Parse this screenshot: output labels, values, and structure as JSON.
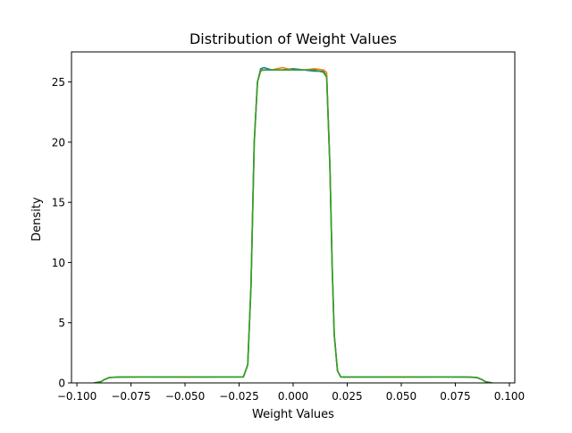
{
  "chart_data": {
    "type": "line",
    "title": "Distribution of Weight Values",
    "xlabel": "Weight Values",
    "ylabel": "Density",
    "xlim": [
      -0.1025,
      0.1025
    ],
    "ylim": [
      0,
      27.5
    ],
    "xticks": [
      -0.1,
      -0.075,
      -0.05,
      -0.025,
      0.0,
      0.025,
      0.05,
      0.075,
      0.1
    ],
    "xtick_labels": [
      "−0.100",
      "−0.075",
      "−0.050",
      "−0.025",
      "0.000",
      "0.025",
      "0.050",
      "0.075",
      "0.100"
    ],
    "yticks": [
      0,
      5,
      10,
      15,
      20,
      25
    ],
    "ytick_labels": [
      "0",
      "5",
      "10",
      "15",
      "20",
      "25"
    ],
    "grid": false,
    "legend": null,
    "series": [
      {
        "color": "#1f77b4",
        "x": [
          -0.092,
          -0.089,
          -0.087,
          -0.085,
          -0.08,
          -0.07,
          -0.06,
          -0.05,
          -0.04,
          -0.03,
          -0.023,
          -0.021,
          -0.0195,
          -0.018,
          -0.0165,
          -0.015,
          -0.0135,
          -0.01,
          -0.005,
          0.0,
          0.005,
          0.01,
          0.014,
          0.0155,
          0.016,
          0.017,
          0.018,
          0.019,
          0.0205,
          0.022,
          0.024,
          0.03,
          0.04,
          0.05,
          0.06,
          0.07,
          0.08,
          0.085,
          0.087,
          0.089,
          0.092
        ],
        "y": [
          0.0,
          0.1,
          0.3,
          0.45,
          0.48,
          0.5,
          0.49,
          0.5,
          0.49,
          0.5,
          0.5,
          1.5,
          8.0,
          20.0,
          25.0,
          26.1,
          26.2,
          26.0,
          26.0,
          26.1,
          26.0,
          25.9,
          25.9,
          25.5,
          23.0,
          18.0,
          10.0,
          4.0,
          1.0,
          0.5,
          0.48,
          0.5,
          0.49,
          0.5,
          0.49,
          0.5,
          0.48,
          0.45,
          0.3,
          0.1,
          0.0
        ]
      },
      {
        "color": "#ff7f0e",
        "x": [
          -0.092,
          -0.089,
          -0.087,
          -0.085,
          -0.08,
          -0.07,
          -0.06,
          -0.05,
          -0.04,
          -0.03,
          -0.023,
          -0.021,
          -0.0195,
          -0.018,
          -0.0165,
          -0.015,
          -0.0135,
          -0.01,
          -0.005,
          0.0,
          0.005,
          0.01,
          0.014,
          0.0155,
          0.016,
          0.017,
          0.018,
          0.019,
          0.0205,
          0.022,
          0.024,
          0.03,
          0.04,
          0.05,
          0.06,
          0.07,
          0.08,
          0.085,
          0.087,
          0.089,
          0.092
        ],
        "y": [
          0.0,
          0.1,
          0.3,
          0.45,
          0.49,
          0.49,
          0.5,
          0.48,
          0.5,
          0.49,
          0.5,
          1.5,
          8.0,
          20.0,
          25.0,
          25.9,
          26.0,
          26.0,
          26.2,
          26.0,
          26.0,
          26.1,
          26.0,
          25.8,
          23.0,
          18.0,
          10.0,
          4.0,
          1.0,
          0.5,
          0.49,
          0.49,
          0.5,
          0.48,
          0.5,
          0.49,
          0.5,
          0.45,
          0.3,
          0.1,
          0.0
        ]
      },
      {
        "color": "#2ca02c",
        "x": [
          -0.092,
          -0.089,
          -0.087,
          -0.085,
          -0.08,
          -0.07,
          -0.06,
          -0.05,
          -0.04,
          -0.03,
          -0.023,
          -0.021,
          -0.0195,
          -0.018,
          -0.0165,
          -0.015,
          -0.0135,
          -0.01,
          -0.005,
          0.0,
          0.005,
          0.01,
          0.014,
          0.0155,
          0.016,
          0.017,
          0.018,
          0.019,
          0.0205,
          0.022,
          0.024,
          0.03,
          0.04,
          0.05,
          0.06,
          0.07,
          0.08,
          0.085,
          0.087,
          0.089,
          0.092
        ],
        "y": [
          0.0,
          0.1,
          0.3,
          0.45,
          0.5,
          0.5,
          0.5,
          0.5,
          0.5,
          0.5,
          0.5,
          1.5,
          8.0,
          20.0,
          25.0,
          26.0,
          26.0,
          26.0,
          26.0,
          26.0,
          26.0,
          26.0,
          25.8,
          25.4,
          23.0,
          18.0,
          10.0,
          4.0,
          1.0,
          0.5,
          0.5,
          0.5,
          0.5,
          0.5,
          0.5,
          0.5,
          0.5,
          0.45,
          0.3,
          0.1,
          0.0
        ]
      }
    ]
  }
}
